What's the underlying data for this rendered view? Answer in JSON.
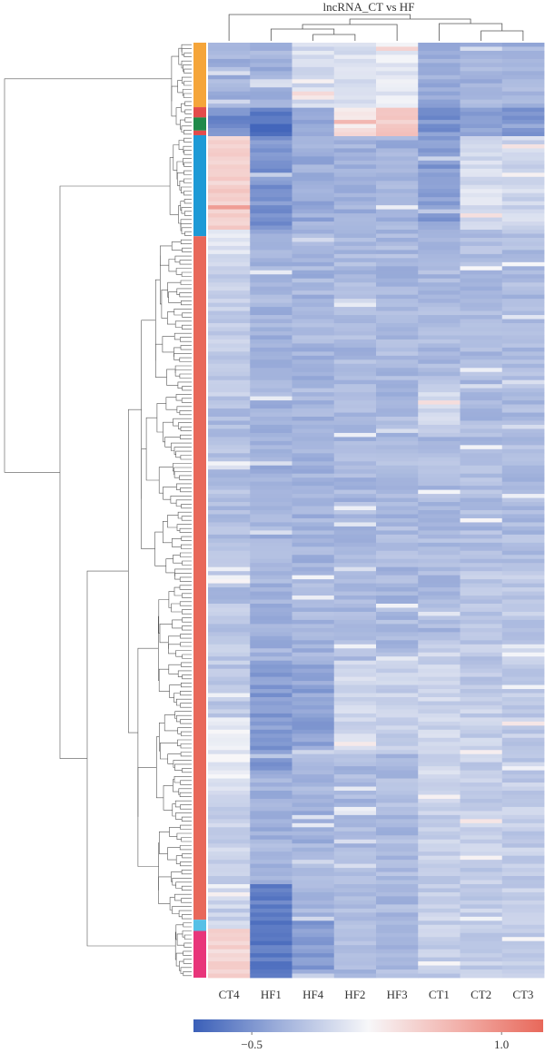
{
  "chart_data": {
    "type": "heatmap",
    "title": "lncRNA_CT vs HF",
    "columns": [
      "CT4",
      "HF1",
      "HF4",
      "HF2",
      "HF3",
      "CT1",
      "CT2",
      "CT3"
    ],
    "row_count": 230,
    "row_dendrogram": true,
    "column_dendrogram": true,
    "colorbar": {
      "min": -0.85,
      "max": 1.25,
      "ticks": [
        -0.5,
        1.0
      ],
      "tick_labels": [
        "−0.5",
        "1.0"
      ],
      "colors": [
        "#3a5fb8",
        "#9fb0db",
        "#f7f7f9",
        "#f2b3ad",
        "#e8685a"
      ]
    },
    "row_clusters": [
      {
        "color": "#f5a53a",
        "start": 0.0,
        "end": 0.069
      },
      {
        "color": "#e34b4b",
        "start": 0.069,
        "end": 0.08
      },
      {
        "color": "#1f8a4a",
        "start": 0.08,
        "end": 0.094
      },
      {
        "color": "#e34b4b",
        "start": 0.094,
        "end": 0.099
      },
      {
        "color": "#1e9ad6",
        "start": 0.099,
        "end": 0.207
      },
      {
        "color": "#e8685a",
        "start": 0.207,
        "end": 0.938
      },
      {
        "color": "#57c0e6",
        "start": 0.938,
        "end": 0.95
      },
      {
        "color": "#e8357a",
        "start": 0.95,
        "end": 1.0
      }
    ],
    "column_profiles": [
      {
        "name": "CT4",
        "segments": [
          {
            "start": 0.0,
            "end": 0.07,
            "value": -0.3
          },
          {
            "start": 0.07,
            "end": 0.1,
            "value": -0.55
          },
          {
            "start": 0.1,
            "end": 0.2,
            "value": 0.5
          },
          {
            "start": 0.2,
            "end": 0.24,
            "value": 0.05
          },
          {
            "start": 0.24,
            "end": 0.38,
            "value": -0.12
          },
          {
            "start": 0.38,
            "end": 0.6,
            "value": -0.22
          },
          {
            "start": 0.6,
            "end": 0.72,
            "value": -0.15
          },
          {
            "start": 0.72,
            "end": 0.8,
            "value": 0.1
          },
          {
            "start": 0.8,
            "end": 0.95,
            "value": -0.08
          },
          {
            "start": 0.95,
            "end": 1.0,
            "value": 0.45
          }
        ]
      },
      {
        "name": "HF1",
        "segments": [
          {
            "start": 0.0,
            "end": 0.07,
            "value": -0.3
          },
          {
            "start": 0.07,
            "end": 0.1,
            "value": -0.7
          },
          {
            "start": 0.1,
            "end": 0.2,
            "value": -0.5
          },
          {
            "start": 0.2,
            "end": 0.38,
            "value": -0.28
          },
          {
            "start": 0.38,
            "end": 0.66,
            "value": -0.3
          },
          {
            "start": 0.66,
            "end": 0.78,
            "value": -0.45
          },
          {
            "start": 0.78,
            "end": 0.9,
            "value": -0.3
          },
          {
            "start": 0.9,
            "end": 1.0,
            "value": -0.65
          }
        ]
      },
      {
        "name": "HF4",
        "segments": [
          {
            "start": 0.0,
            "end": 0.07,
            "value": 0.0
          },
          {
            "start": 0.07,
            "end": 0.1,
            "value": -0.4
          },
          {
            "start": 0.1,
            "end": 0.2,
            "value": -0.35
          },
          {
            "start": 0.2,
            "end": 0.66,
            "value": -0.28
          },
          {
            "start": 0.66,
            "end": 0.76,
            "value": -0.4
          },
          {
            "start": 0.76,
            "end": 0.94,
            "value": -0.3
          },
          {
            "start": 0.94,
            "end": 1.0,
            "value": -0.45
          }
        ]
      },
      {
        "name": "HF2",
        "segments": [
          {
            "start": 0.0,
            "end": 0.07,
            "value": 0.05
          },
          {
            "start": 0.07,
            "end": 0.1,
            "value": 0.35
          },
          {
            "start": 0.1,
            "end": 0.2,
            "value": -0.3
          },
          {
            "start": 0.2,
            "end": 0.66,
            "value": -0.26
          },
          {
            "start": 0.66,
            "end": 0.76,
            "value": -0.05
          },
          {
            "start": 0.76,
            "end": 1.0,
            "value": -0.25
          }
        ]
      },
      {
        "name": "HF3",
        "segments": [
          {
            "start": 0.0,
            "end": 0.07,
            "value": 0.1
          },
          {
            "start": 0.07,
            "end": 0.1,
            "value": 0.55
          },
          {
            "start": 0.1,
            "end": 0.2,
            "value": -0.3
          },
          {
            "start": 0.2,
            "end": 0.66,
            "value": -0.26
          },
          {
            "start": 0.66,
            "end": 0.76,
            "value": -0.1
          },
          {
            "start": 0.76,
            "end": 1.0,
            "value": -0.25
          }
        ]
      },
      {
        "name": "CT1",
        "segments": [
          {
            "start": 0.0,
            "end": 0.07,
            "value": -0.35
          },
          {
            "start": 0.07,
            "end": 0.1,
            "value": -0.5
          },
          {
            "start": 0.1,
            "end": 0.2,
            "value": -0.45
          },
          {
            "start": 0.2,
            "end": 0.36,
            "value": -0.25
          },
          {
            "start": 0.36,
            "end": 0.42,
            "value": -0.05
          },
          {
            "start": 0.42,
            "end": 0.64,
            "value": -0.25
          },
          {
            "start": 0.64,
            "end": 0.8,
            "value": -0.05
          },
          {
            "start": 0.8,
            "end": 1.0,
            "value": -0.1
          }
        ]
      },
      {
        "name": "CT2",
        "segments": [
          {
            "start": 0.0,
            "end": 0.07,
            "value": -0.3
          },
          {
            "start": 0.07,
            "end": 0.1,
            "value": -0.45
          },
          {
            "start": 0.1,
            "end": 0.2,
            "value": 0.0
          },
          {
            "start": 0.2,
            "end": 0.56,
            "value": -0.24
          },
          {
            "start": 0.56,
            "end": 0.7,
            "value": -0.15
          },
          {
            "start": 0.7,
            "end": 1.0,
            "value": -0.1
          }
        ]
      },
      {
        "name": "CT3",
        "segments": [
          {
            "start": 0.0,
            "end": 0.07,
            "value": -0.3
          },
          {
            "start": 0.07,
            "end": 0.1,
            "value": -0.45
          },
          {
            "start": 0.1,
            "end": 0.2,
            "value": -0.05
          },
          {
            "start": 0.2,
            "end": 0.56,
            "value": -0.24
          },
          {
            "start": 0.56,
            "end": 0.7,
            "value": -0.15
          },
          {
            "start": 0.7,
            "end": 1.0,
            "value": -0.12
          }
        ]
      }
    ]
  }
}
